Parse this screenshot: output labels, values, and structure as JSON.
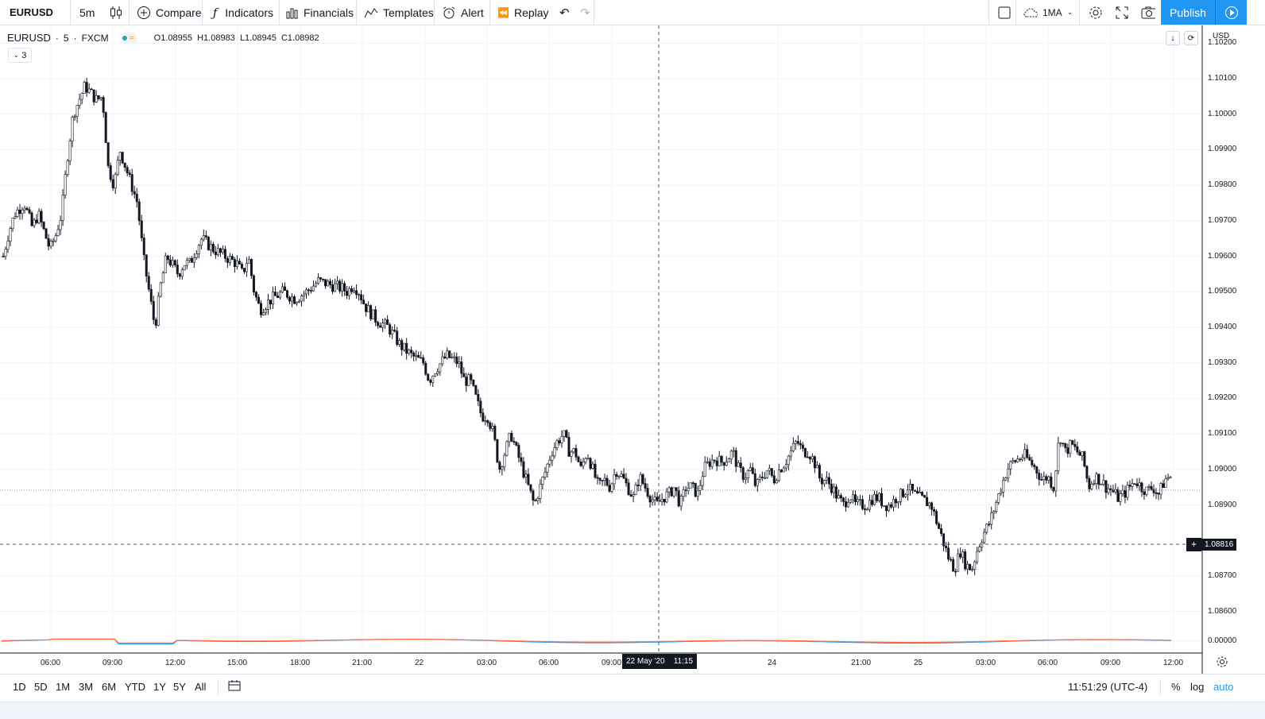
{
  "toolbar": {
    "symbol": "EURUSD",
    "interval": "5m",
    "compare_label": "Compare",
    "indicators_label": "Indicators",
    "financials_label": "Financials",
    "templates_label": "Templates",
    "alert_label": "Alert",
    "replay_label": "Replay",
    "layout_label": "1MA",
    "publish_label": "Publish"
  },
  "legend": {
    "symbol": "EURUSD",
    "interval": "5",
    "exchange": "FXCM",
    "open": "O1.08955",
    "high": "H1.08983",
    "low": "L1.08945",
    "close": "C1.08982",
    "collapsed_count": "3"
  },
  "price_axis": {
    "currency": "USD",
    "labels": [
      "1.10200",
      "1.10100",
      "1.10000",
      "1.09900",
      "1.09800",
      "1.09700",
      "1.09600",
      "1.09500",
      "1.09400",
      "1.09300",
      "1.09200",
      "1.09100",
      "1.09000",
      "1.08900",
      "1.08700",
      "1.08600",
      "0.00000"
    ],
    "crosshair_price": "1.08816"
  },
  "time_axis": {
    "labels": [
      "06:00",
      "09:00",
      "12:00",
      "15:00",
      "18:00",
      "21:00",
      "22",
      "03:00",
      "06:00",
      "09:00",
      "24",
      "21:00",
      "25",
      "03:00",
      "06:00",
      "09:00",
      "12:00"
    ],
    "crosshair_time": "22 May '20    11:15"
  },
  "bottom": {
    "ranges": [
      "1D",
      "5D",
      "1M",
      "3M",
      "6M",
      "YTD",
      "1Y",
      "5Y",
      "All"
    ],
    "clock": "11:51:29 (UTC-4)",
    "percent": "%",
    "log": "log",
    "auto": "auto"
  },
  "colors": {
    "candle": "#131722",
    "accent": "#2196f3",
    "macd": "#26a69a",
    "signal": "#ff7043"
  },
  "chart_data": {
    "type": "candlestick",
    "symbol": "EURUSD",
    "ylim": [
      1.0855,
      1.1025
    ],
    "path": [
      [
        0,
        1.096
      ],
      [
        0.005,
        1.0967
      ],
      [
        0.01,
        1.0972
      ],
      [
        0.018,
        1.0975
      ],
      [
        0.025,
        1.0968
      ],
      [
        0.03,
        1.0972
      ],
      [
        0.04,
        1.0962
      ],
      [
        0.045,
        1.0966
      ],
      [
        0.05,
        1.0972
      ],
      [
        0.055,
        1.0988
      ],
      [
        0.06,
        1.1
      ],
      [
        0.065,
        1.1004
      ],
      [
        0.07,
        1.1008
      ],
      [
        0.075,
        1.1006
      ],
      [
        0.08,
        1.1004
      ],
      [
        0.085,
        1.1005
      ],
      [
        0.09,
        1.0985
      ],
      [
        0.095,
        1.098
      ],
      [
        0.1,
        1.099
      ],
      [
        0.105,
        1.0985
      ],
      [
        0.11,
        1.098
      ],
      [
        0.115,
        1.0975
      ],
      [
        0.12,
        1.096
      ],
      [
        0.125,
        1.095
      ],
      [
        0.13,
        1.094
      ],
      [
        0.135,
        1.0952
      ],
      [
        0.14,
        1.096
      ],
      [
        0.15,
        1.0955
      ],
      [
        0.155,
        1.0958
      ],
      [
        0.16,
        1.0958
      ],
      [
        0.165,
        1.0962
      ],
      [
        0.17,
        1.0965
      ],
      [
        0.18,
        1.0962
      ],
      [
        0.19,
        1.096
      ],
      [
        0.2,
        1.0958
      ],
      [
        0.205,
        1.0955
      ],
      [
        0.21,
        1.096
      ],
      [
        0.215,
        1.095
      ],
      [
        0.22,
        1.0945
      ],
      [
        0.23,
        1.0948
      ],
      [
        0.24,
        1.095
      ],
      [
        0.25,
        1.0948
      ],
      [
        0.26,
        1.095
      ],
      [
        0.27,
        1.0953
      ],
      [
        0.28,
        1.0952
      ],
      [
        0.29,
        1.0951
      ],
      [
        0.295,
        1.095
      ],
      [
        0.3,
        1.0952
      ],
      [
        0.305,
        1.095
      ],
      [
        0.31,
        1.0946
      ],
      [
        0.32,
        1.0942
      ],
      [
        0.33,
        1.094
      ],
      [
        0.34,
        1.0935
      ],
      [
        0.35,
        1.0932
      ],
      [
        0.36,
        1.093
      ],
      [
        0.365,
        1.0925
      ],
      [
        0.37,
        1.0928
      ],
      [
        0.375,
        1.093
      ],
      [
        0.38,
        1.0932
      ],
      [
        0.39,
        1.093
      ],
      [
        0.395,
        1.0925
      ],
      [
        0.4,
        1.0925
      ],
      [
        0.405,
        1.092
      ],
      [
        0.41,
        1.0915
      ],
      [
        0.415,
        1.0915
      ],
      [
        0.42,
        1.091
      ],
      [
        0.425,
        1.09
      ],
      [
        0.43,
        1.0905
      ],
      [
        0.435,
        1.091
      ],
      [
        0.44,
        1.0905
      ],
      [
        0.445,
        1.09
      ],
      [
        0.45,
        1.0895
      ],
      [
        0.455,
        1.089
      ],
      [
        0.46,
        1.0895
      ],
      [
        0.465,
        1.09
      ],
      [
        0.47,
        1.0905
      ],
      [
        0.475,
        1.0908
      ],
      [
        0.48,
        1.091
      ],
      [
        0.485,
        1.0905
      ],
      [
        0.49,
        1.0905
      ],
      [
        0.495,
        1.09
      ],
      [
        0.5,
        1.0905
      ],
      [
        0.505,
        1.09
      ],
      [
        0.51,
        1.0895
      ],
      [
        0.515,
        1.0897
      ],
      [
        0.52,
        1.0895
      ],
      [
        0.525,
        1.09
      ],
      [
        0.53,
        1.0898
      ],
      [
        0.535,
        1.0895
      ],
      [
        0.54,
        1.0892
      ],
      [
        0.545,
        1.0898
      ],
      [
        0.55,
        1.0895
      ],
      [
        0.555,
        1.0892
      ],
      [
        0.56,
        1.089
      ],
      [
        0.565,
        1.0892
      ],
      [
        0.57,
        1.0893
      ],
      [
        0.575,
        1.0895
      ],
      [
        0.58,
        1.089
      ],
      [
        0.585,
        1.0895
      ],
      [
        0.59,
        1.0895
      ],
      [
        0.595,
        1.0893
      ],
      [
        0.6,
        1.09
      ],
      [
        0.605,
        1.0902
      ],
      [
        0.61,
        1.0903
      ],
      [
        0.615,
        1.0902
      ],
      [
        0.62,
        1.0903
      ],
      [
        0.625,
        1.0905
      ],
      [
        0.63,
        1.09
      ],
      [
        0.635,
        1.0898
      ],
      [
        0.64,
        1.09
      ],
      [
        0.645,
        1.0895
      ],
      [
        0.65,
        1.0898
      ],
      [
        0.655,
        1.09
      ],
      [
        0.66,
        1.0897
      ],
      [
        0.665,
        1.09
      ],
      [
        0.67,
        1.0902
      ],
      [
        0.675,
        1.0905
      ],
      [
        0.68,
        1.0908
      ],
      [
        0.685,
        1.0905
      ],
      [
        0.69,
        1.0905
      ],
      [
        0.695,
        1.0902
      ],
      [
        0.7,
        1.0897
      ],
      [
        0.705,
        1.0897
      ],
      [
        0.71,
        1.0895
      ],
      [
        0.715,
        1.0892
      ],
      [
        0.72,
        1.089
      ],
      [
        0.725,
        1.0893
      ],
      [
        0.73,
        1.089
      ],
      [
        0.735,
        1.089
      ],
      [
        0.74,
        1.089
      ],
      [
        0.745,
        1.0892
      ],
      [
        0.75,
        1.0892
      ],
      [
        0.755,
        1.089
      ],
      [
        0.76,
        1.089
      ],
      [
        0.765,
        1.0892
      ],
      [
        0.77,
        1.0893
      ],
      [
        0.775,
        1.0895
      ],
      [
        0.78,
        1.0893
      ],
      [
        0.785,
        1.0892
      ],
      [
        0.79,
        1.0891
      ],
      [
        0.795,
        1.089
      ],
      [
        0.8,
        1.0885
      ],
      [
        0.805,
        1.088
      ],
      [
        0.81,
        1.0875
      ],
      [
        0.815,
        1.0872
      ],
      [
        0.82,
        1.0877
      ],
      [
        0.825,
        1.0873
      ],
      [
        0.83,
        1.0872
      ],
      [
        0.835,
        1.0878
      ],
      [
        0.84,
        1.0882
      ],
      [
        0.845,
        1.0885
      ],
      [
        0.85,
        1.089
      ],
      [
        0.855,
        1.0895
      ],
      [
        0.86,
        1.09
      ],
      [
        0.865,
        1.0902
      ],
      [
        0.87,
        1.0903
      ],
      [
        0.875,
        1.0904
      ],
      [
        0.88,
        1.0902
      ],
      [
        0.885,
        1.09
      ],
      [
        0.89,
        1.0897
      ],
      [
        0.895,
        1.0898
      ],
      [
        0.9,
        1.0895
      ],
      [
        0.905,
        1.091
      ],
      [
        0.91,
        1.0905
      ],
      [
        0.915,
        1.0907
      ],
      [
        0.92,
        1.0905
      ],
      [
        0.925,
        1.0903
      ],
      [
        0.93,
        1.0895
      ],
      [
        0.935,
        1.0898
      ],
      [
        0.94,
        1.0897
      ],
      [
        0.945,
        1.0895
      ],
      [
        0.95,
        1.0894
      ],
      [
        0.955,
        1.0892
      ],
      [
        0.96,
        1.0893
      ],
      [
        0.965,
        1.0895
      ],
      [
        0.97,
        1.0897
      ],
      [
        0.975,
        1.0895
      ],
      [
        0.98,
        1.0894
      ],
      [
        0.985,
        1.0895
      ],
      [
        0.99,
        1.0893
      ],
      [
        0.995,
        1.0897
      ],
      [
        1,
        1.0898
      ]
    ]
  }
}
